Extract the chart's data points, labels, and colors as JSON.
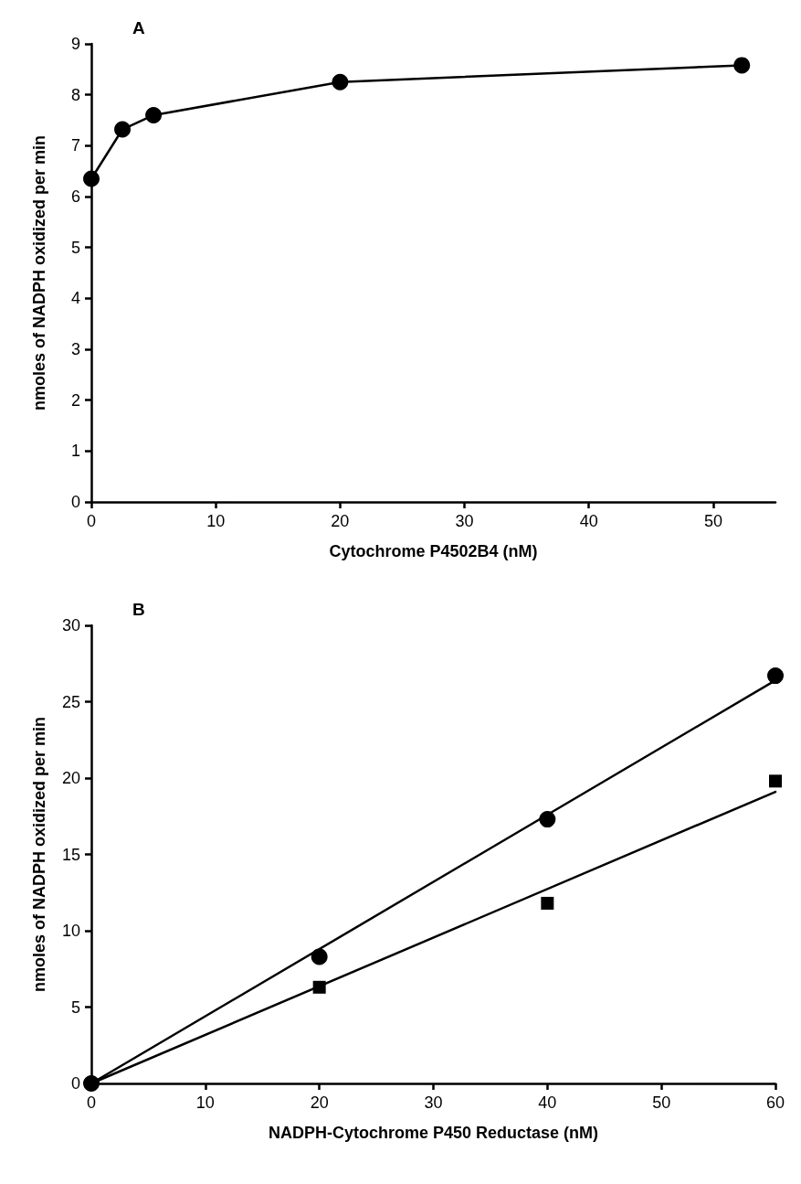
{
  "chart_data": [
    {
      "type": "line",
      "title": "A",
      "xlabel": "Cytochrome P4502B4 (nM)",
      "ylabel": "nmoles of NADPH oxidized per min",
      "xlim": [
        0,
        55
      ],
      "xticks": [
        0,
        10,
        20,
        30,
        40,
        50
      ],
      "ylim": [
        0,
        9
      ],
      "yticks": [
        0,
        1,
        2,
        3,
        4,
        5,
        6,
        7,
        8,
        9
      ],
      "grid": false,
      "marker": "circle",
      "line_style": "solid",
      "series": [
        {
          "color": "#000000",
          "x": [
            0,
            2.5,
            5,
            20,
            52.3
          ],
          "values": [
            6.35,
            7.32,
            7.6,
            8.25,
            8.58
          ]
        }
      ]
    },
    {
      "type": "scatter",
      "title": "B",
      "xlabel": "NADPH-Cytochrome P450 Reductase (nM)",
      "ylabel": "nmoles of NADPH oxidized per min",
      "xlim": [
        0,
        60
      ],
      "xticks": [
        0,
        10,
        20,
        30,
        40,
        50,
        60
      ],
      "ylim": [
        0,
        30
      ],
      "yticks": [
        0,
        5,
        10,
        15,
        20,
        25,
        30
      ],
      "grid": false,
      "series": [
        {
          "marker": "circle",
          "color": "#000000",
          "x": [
            0,
            20,
            40,
            60
          ],
          "values": [
            0,
            8.3,
            17.3,
            26.7
          ]
        },
        {
          "marker": "square",
          "color": "#000000",
          "x": [
            20,
            40,
            60
          ],
          "values": [
            6.3,
            11.8,
            19.8
          ]
        },
        {
          "type": "line",
          "marker": "none",
          "line_style": "solid",
          "color": "#000000",
          "x": [
            0,
            60
          ],
          "values": [
            0,
            26.4
          ]
        },
        {
          "type": "line",
          "marker": "none",
          "line_style": "solid",
          "color": "#000000",
          "x": [
            0,
            60
          ],
          "values": [
            0,
            19.1
          ]
        }
      ]
    }
  ]
}
